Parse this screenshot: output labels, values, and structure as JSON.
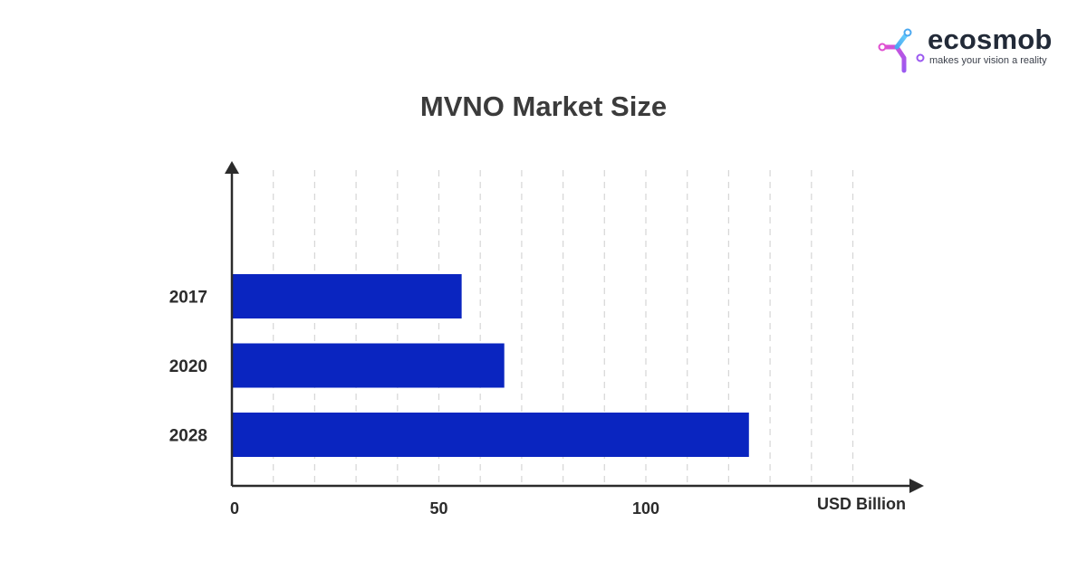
{
  "brand": {
    "name": "ecosmob",
    "tagline": "makes your vision a reality",
    "icon": "ecosmob-logo-icon"
  },
  "chart_data": {
    "type": "bar",
    "orientation": "horizontal",
    "title": "MVNO Market Size",
    "xlabel": "USD Billion",
    "ylabel": "",
    "categories": [
      "2017",
      "2020",
      "2028"
    ],
    "values": [
      55.5,
      65.8,
      124.9
    ],
    "xlim": [
      0,
      150
    ],
    "xticks": [
      0,
      50,
      100
    ],
    "grid": "vertical dashed",
    "bar_color": "#0a25c0"
  }
}
